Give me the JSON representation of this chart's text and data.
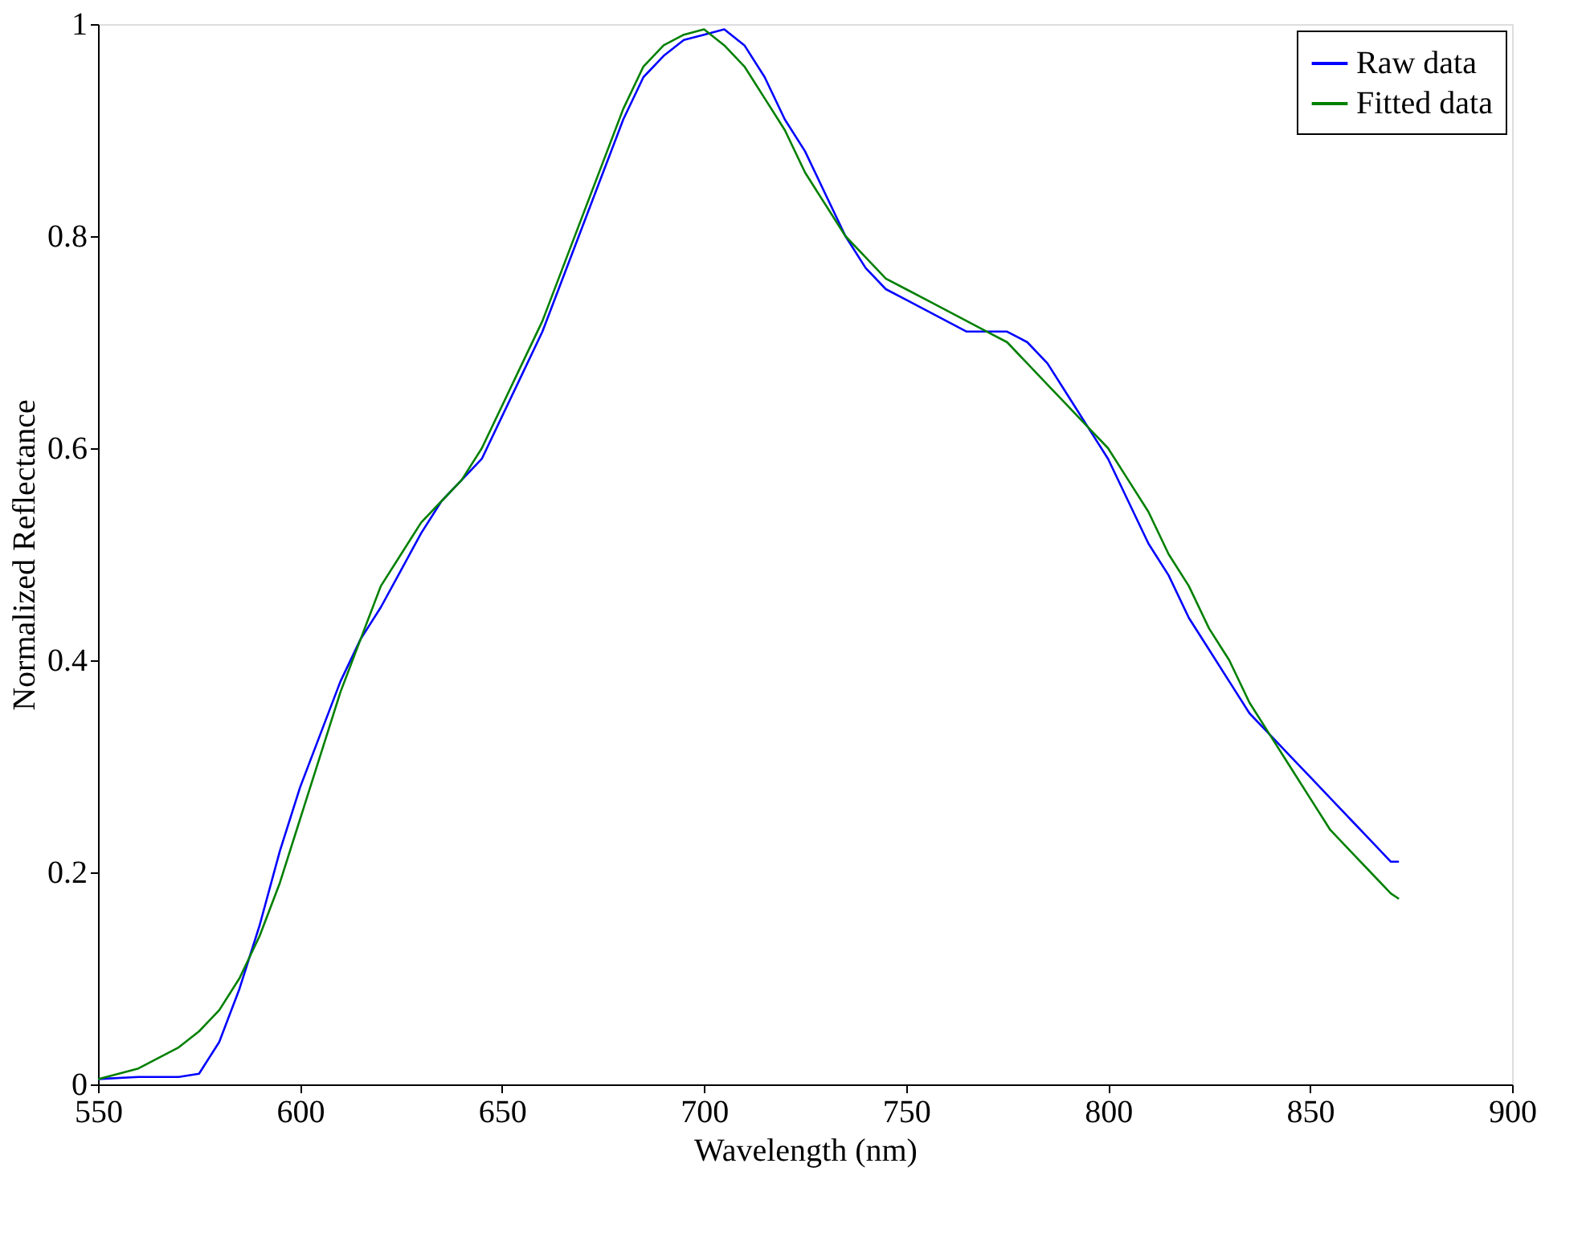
{
  "chart_data": {
    "type": "line",
    "xlabel": "Wavelength (nm)",
    "ylabel": "Normalized Reflectance",
    "xlim": [
      550,
      900
    ],
    "xticks": [
      550,
      600,
      650,
      700,
      750,
      800,
      850,
      900
    ],
    "ylim": [
      0,
      1
    ],
    "yticks": [
      0,
      0.2,
      0.4,
      0.6,
      0.8,
      1
    ],
    "grid": false,
    "legend": "top right",
    "line_style": "solid",
    "marker": "none",
    "series": [
      {
        "name": "Raw data",
        "color": "#0000ff",
        "x": [
          550,
          560,
          570,
          575,
          580,
          585,
          590,
          595,
          600,
          605,
          610,
          615,
          620,
          625,
          630,
          635,
          640,
          645,
          650,
          655,
          660,
          665,
          670,
          675,
          680,
          685,
          690,
          695,
          700,
          705,
          710,
          715,
          720,
          725,
          730,
          735,
          740,
          745,
          750,
          755,
          760,
          765,
          770,
          775,
          780,
          785,
          790,
          795,
          800,
          805,
          810,
          815,
          820,
          825,
          830,
          835,
          840,
          845,
          850,
          855,
          860,
          865,
          870,
          872
        ],
        "values": [
          0.005,
          0.007,
          0.007,
          0.01,
          0.04,
          0.09,
          0.15,
          0.22,
          0.28,
          0.33,
          0.38,
          0.42,
          0.45,
          0.485,
          0.52,
          0.55,
          0.57,
          0.59,
          0.63,
          0.67,
          0.71,
          0.76,
          0.81,
          0.86,
          0.91,
          0.95,
          0.97,
          0.985,
          0.99,
          0.995,
          0.98,
          0.95,
          0.91,
          0.88,
          0.84,
          0.8,
          0.77,
          0.75,
          0.74,
          0.73,
          0.72,
          0.71,
          0.71,
          0.71,
          0.7,
          0.68,
          0.65,
          0.62,
          0.59,
          0.55,
          0.51,
          0.48,
          0.44,
          0.41,
          0.38,
          0.35,
          0.33,
          0.31,
          0.29,
          0.27,
          0.25,
          0.23,
          0.21,
          0.21
        ]
      },
      {
        "name": "Fitted data",
        "color": "#008000",
        "x": [
          550,
          560,
          570,
          575,
          580,
          585,
          590,
          595,
          600,
          605,
          610,
          615,
          620,
          625,
          630,
          635,
          640,
          645,
          650,
          655,
          660,
          665,
          670,
          675,
          680,
          685,
          690,
          695,
          700,
          705,
          710,
          715,
          720,
          725,
          730,
          735,
          740,
          745,
          750,
          755,
          760,
          765,
          770,
          775,
          780,
          785,
          790,
          795,
          800,
          805,
          810,
          815,
          820,
          825,
          830,
          835,
          840,
          845,
          850,
          855,
          860,
          865,
          870,
          872
        ],
        "values": [
          0.005,
          0.015,
          0.035,
          0.05,
          0.07,
          0.1,
          0.14,
          0.19,
          0.25,
          0.31,
          0.37,
          0.42,
          0.47,
          0.5,
          0.53,
          0.55,
          0.57,
          0.6,
          0.64,
          0.68,
          0.72,
          0.77,
          0.82,
          0.87,
          0.92,
          0.96,
          0.98,
          0.99,
          0.995,
          0.98,
          0.96,
          0.93,
          0.9,
          0.86,
          0.83,
          0.8,
          0.78,
          0.76,
          0.75,
          0.74,
          0.73,
          0.72,
          0.71,
          0.7,
          0.68,
          0.66,
          0.64,
          0.62,
          0.6,
          0.57,
          0.54,
          0.5,
          0.47,
          0.43,
          0.4,
          0.36,
          0.33,
          0.3,
          0.27,
          0.24,
          0.22,
          0.2,
          0.18,
          0.175
        ]
      }
    ]
  }
}
